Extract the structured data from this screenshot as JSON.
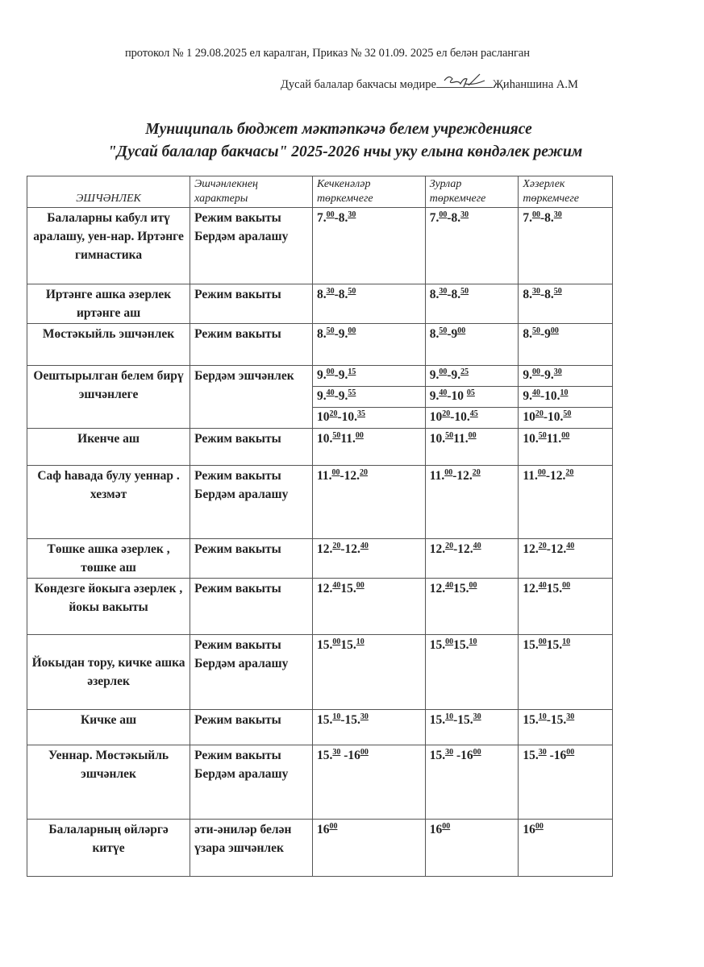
{
  "header": {
    "approval_line": "протокол № 1  29.08.2025 ел каралган, Приказ №  32   01.09. 2025 ел белән расланган",
    "head_prefix": "Дусай балалар бакчасы мөдире",
    "head_name": "Җиһаншина А.М"
  },
  "title": {
    "line1": "Муниципаль бюджет мәктәпкәчә белем учреждениясе",
    "line2": "\"Дусай балалар бакчасы\" 2025-2026 нчы уку елына  көндәлек режим"
  },
  "table": {
    "columns": [
      "ЭШЧӘНЛЕК",
      "Эшчәнлекнең характеры",
      "Кечкенәләр төркемчеге",
      "Зурлар төркемчеге",
      "Хәзерлек төркемчеге"
    ],
    "rows": [
      {
        "activity": "Балаларны кабул итү аралашу, уен-нар.  Иртәнге гимнастика",
        "nature": "Режим вакыты Бердәм аралашу",
        "times": [
          [
            [
              "7.",
              "00",
              "-8.",
              "30"
            ]
          ],
          [
            [
              "7.",
              "00",
              "-8.",
              "30"
            ]
          ],
          [
            [
              "7.",
              "00",
              "-8.",
              "30"
            ]
          ]
        ]
      },
      {
        "activity": "Иртәнге ашка әзерлек  иртәнге аш",
        "nature": "Режим вакыты",
        "times": [
          [
            [
              "8.",
              "30",
              "-8.",
              "50"
            ]
          ],
          [
            [
              "8.",
              "30",
              "-8.",
              "50"
            ]
          ],
          [
            [
              "8.",
              "30",
              "-8.",
              "50"
            ]
          ]
        ]
      },
      {
        "activity": "Мөстәкыйль эшчәнлек",
        "nature": "Режим вакыты",
        "times": [
          [
            [
              "8.",
              "50",
              "-9.",
              "00"
            ]
          ],
          [
            [
              "8.",
              "50",
              "-9",
              "00"
            ]
          ],
          [
            [
              "8.",
              "50",
              "-9",
              "00"
            ]
          ]
        ]
      },
      {
        "activity": "Оештырылган белем бирү эшчәнлеге",
        "nature": "Бердәм эшчәнлек",
        "times": [
          [
            [
              "9.",
              "00",
              "-9.",
              "15"
            ],
            [
              "9.",
              "40",
              "-9.",
              "55"
            ],
            [
              "10",
              "20",
              "-10.",
              "35"
            ]
          ],
          [
            [
              "9.",
              "00",
              "-9.",
              "25"
            ],
            [
              "9.",
              "40",
              "-10 ",
              "05"
            ],
            [
              "10",
              "20",
              "-10.",
              "45"
            ]
          ],
          [
            [
              "9.",
              "00",
              "-9.",
              "30"
            ],
            [
              "9.",
              "40",
              "-10.",
              "10"
            ],
            [
              "10",
              "20",
              "-10.",
              "50"
            ]
          ]
        ]
      },
      {
        "activity": "Икенче аш",
        "nature": "Режим вакыты",
        "times": [
          [
            [
              "10.",
              "50",
              "11.",
              "00"
            ]
          ],
          [
            [
              "10.",
              "50",
              "11.",
              "00"
            ]
          ],
          [
            [
              "10.",
              "50",
              "11.",
              "00"
            ]
          ]
        ]
      },
      {
        "activity": "Саф һавада булу уеннар . хезмәт",
        "nature": "Режим вакыты Бердәм аралашу",
        "times": [
          [
            [
              "11.",
              "00",
              "-12.",
              "20"
            ]
          ],
          [
            [
              "11.",
              "00",
              "-12.",
              "20"
            ]
          ],
          [
            [
              "11.",
              "00",
              "-12.",
              "20"
            ]
          ]
        ]
      },
      {
        "activity": "Төшке ашка әзерлек ,  төшке аш",
        "nature": "Режим вакыты",
        "times": [
          [
            [
              "12.",
              "20",
              "-12.",
              "40"
            ]
          ],
          [
            [
              "12.",
              "20",
              "-12.",
              "40"
            ]
          ],
          [
            [
              "12.",
              "20",
              "-12.",
              "40"
            ]
          ]
        ]
      },
      {
        "activity": "Көндезге йокыга әзерлек , йокы вакыты",
        "nature": "Режим вакыты",
        "times": [
          [
            [
              "12.",
              "40",
              "15.",
              "00"
            ]
          ],
          [
            [
              "12.",
              "40",
              "15.",
              "00"
            ]
          ],
          [
            [
              "12.",
              "40",
              "15.",
              "00"
            ]
          ]
        ]
      },
      {
        "activity": "Йокыдан тору, кичке  ашка әзерлек",
        "nature": "Режим вакыты Бердәм аралашу",
        "times": [
          [
            [
              "15.",
              "00",
              "15.",
              "10"
            ]
          ],
          [
            [
              "15.",
              "00",
              "15.",
              "10"
            ]
          ],
          [
            [
              "15.",
              "00",
              "15.",
              "10"
            ]
          ]
        ]
      },
      {
        "activity": "Кичке аш",
        "nature": "Режим вакыты",
        "times": [
          [
            [
              "15.",
              "10",
              "-15.",
              "30"
            ]
          ],
          [
            [
              "15.",
              "10",
              "-15.",
              "30"
            ]
          ],
          [
            [
              "15.",
              "10",
              "-15.",
              "30"
            ]
          ]
        ]
      },
      {
        "activity": "Уеннар. Мөстәкыйль эшчәнлек",
        "nature": "Режим вакыты Бердәм аралашу",
        "times": [
          [
            [
              "15.",
              "30",
              " -16",
              "00"
            ]
          ],
          [
            [
              "15.",
              "30",
              " -16",
              "00"
            ]
          ],
          [
            [
              "15.",
              "30",
              " -16",
              "00"
            ]
          ]
        ]
      },
      {
        "activity": "Балаларның өйләргә китүе",
        "nature": "әти-әниләр белән үзара эшчәнлек",
        "times": [
          [
            [
              "16",
              "00"
            ]
          ],
          [
            [
              "16",
              "00"
            ]
          ],
          [
            [
              "16",
              "00"
            ]
          ]
        ]
      }
    ]
  }
}
